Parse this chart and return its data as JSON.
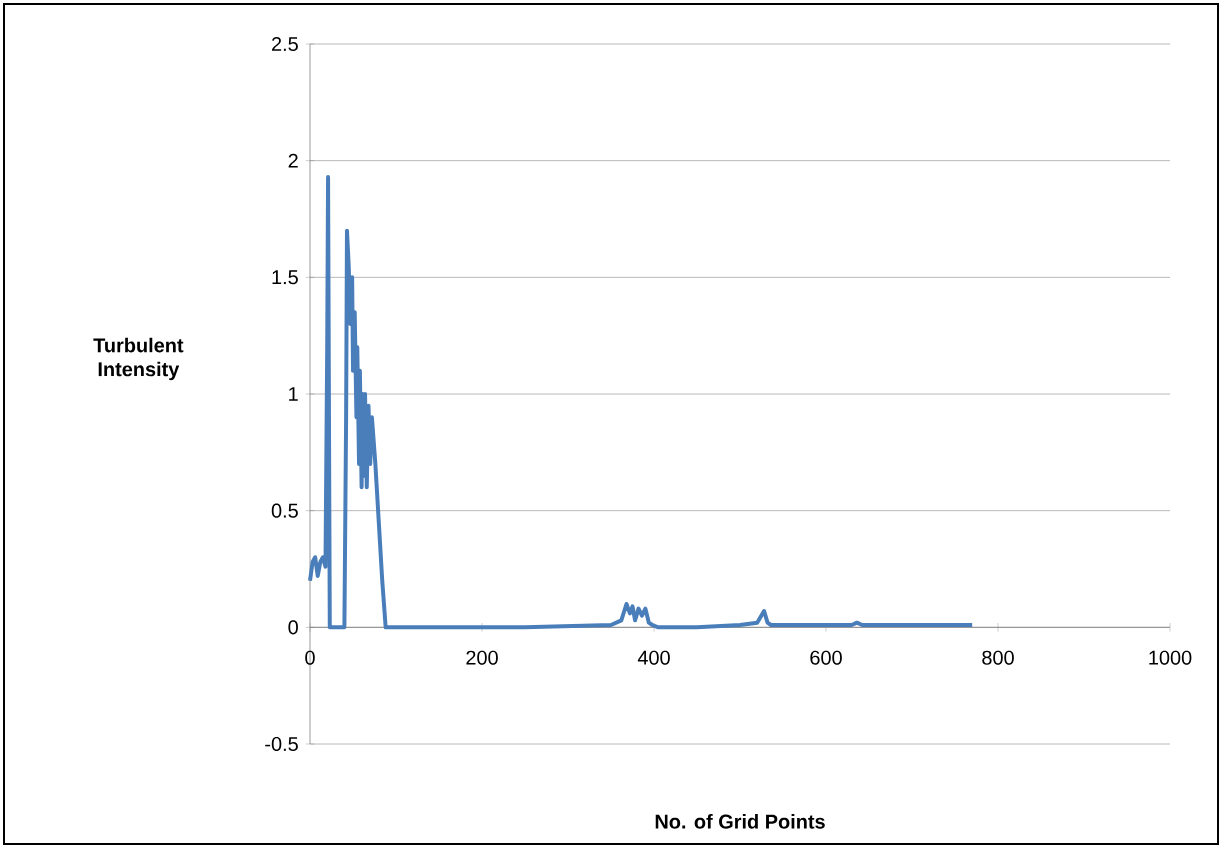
{
  "chart_data": {
    "type": "line",
    "xlabel": "No. of Grid Points",
    "ylabel": "Turbulent Intensity",
    "xlim": [
      0,
      1000
    ],
    "xticks": [
      0,
      200,
      400,
      600,
      800,
      1000
    ],
    "ylim": [
      -0.5,
      2.5
    ],
    "yticks": [
      -0.5,
      0,
      0.5,
      1,
      1.5,
      2,
      2.5
    ],
    "grid": "y",
    "marker": "none",
    "line_style": "solid",
    "series": [
      {
        "color": "#4a7ebb",
        "x": [
          0,
          3,
          6,
          9,
          12,
          15,
          18,
          20,
          21,
          23,
          30,
          40,
          42,
          43,
          45,
          47,
          49,
          50,
          52,
          54,
          55,
          57,
          58,
          60,
          61,
          63,
          64,
          66,
          68,
          70,
          72,
          74,
          76,
          80,
          84,
          88,
          150,
          250,
          350,
          362,
          368,
          372,
          375,
          378,
          382,
          386,
          390,
          394,
          398,
          405,
          450,
          500,
          520,
          528,
          532,
          536,
          560,
          600,
          630,
          636,
          642,
          700,
          770
        ],
        "values": [
          0.2,
          0.28,
          0.3,
          0.22,
          0.28,
          0.3,
          0.26,
          1.2,
          1.93,
          0,
          0,
          0,
          0.9,
          1.7,
          1.55,
          1.3,
          1.5,
          1.1,
          1.35,
          0.9,
          1.2,
          0.7,
          1.1,
          0.6,
          1.0,
          0.65,
          1.0,
          0.6,
          0.95,
          0.7,
          0.9,
          0.8,
          0.7,
          0.45,
          0.2,
          0,
          0,
          0,
          0.01,
          0.03,
          0.1,
          0.06,
          0.09,
          0.03,
          0.08,
          0.05,
          0.08,
          0.02,
          0.01,
          0,
          0,
          0.01,
          0.02,
          0.07,
          0.02,
          0.01,
          0.01,
          0.01,
          0.01,
          0.02,
          0.01,
          0.01,
          0.01
        ]
      }
    ]
  }
}
